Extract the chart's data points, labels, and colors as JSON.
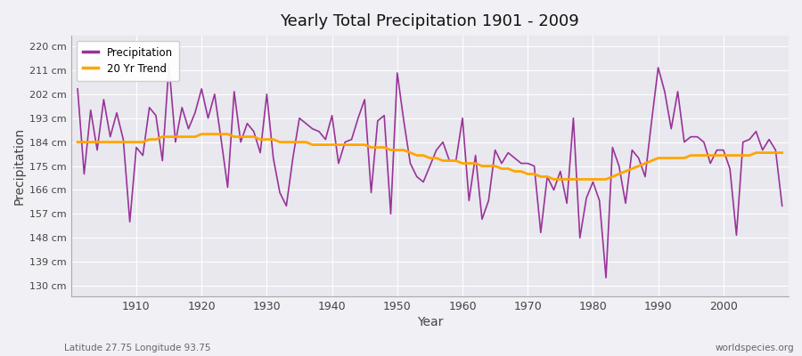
{
  "title": "Yearly Total Precipitation 1901 - 2009",
  "xlabel": "Year",
  "ylabel": "Precipitation",
  "x_label_bottom_left": "Latitude 27.75 Longitude 93.75",
  "x_label_bottom_right": "worldspecies.org",
  "legend_labels": [
    "Precipitation",
    "20 Yr Trend"
  ],
  "precip_color": "#993399",
  "trend_color": "#FFA500",
  "background_color": "#f0f0f5",
  "plot_bg_color": "#e8e8ee",
  "yticks": [
    130,
    139,
    148,
    157,
    166,
    175,
    184,
    193,
    202,
    211,
    220
  ],
  "ylim": [
    126,
    224
  ],
  "xlim": [
    1900,
    2010
  ],
  "years": [
    1901,
    1902,
    1903,
    1904,
    1905,
    1906,
    1907,
    1908,
    1909,
    1910,
    1911,
    1912,
    1913,
    1914,
    1915,
    1916,
    1917,
    1918,
    1919,
    1920,
    1921,
    1922,
    1923,
    1924,
    1925,
    1926,
    1927,
    1928,
    1929,
    1930,
    1931,
    1932,
    1933,
    1934,
    1935,
    1936,
    1937,
    1938,
    1939,
    1940,
    1941,
    1942,
    1943,
    1944,
    1945,
    1946,
    1947,
    1948,
    1949,
    1950,
    1951,
    1952,
    1953,
    1954,
    1955,
    1956,
    1957,
    1958,
    1959,
    1960,
    1961,
    1962,
    1963,
    1964,
    1965,
    1966,
    1967,
    1968,
    1969,
    1970,
    1971,
    1972,
    1973,
    1974,
    1975,
    1976,
    1977,
    1978,
    1979,
    1980,
    1981,
    1982,
    1983,
    1984,
    1985,
    1986,
    1987,
    1988,
    1989,
    1990,
    1991,
    1992,
    1993,
    1994,
    1995,
    1996,
    1997,
    1998,
    1999,
    2000,
    2001,
    2002,
    2003,
    2004,
    2005,
    2006,
    2007,
    2008,
    2009
  ],
  "precip": [
    204,
    172,
    196,
    181,
    200,
    186,
    195,
    185,
    154,
    182,
    179,
    197,
    194,
    177,
    213,
    184,
    197,
    189,
    195,
    204,
    193,
    202,
    185,
    167,
    203,
    184,
    191,
    188,
    180,
    202,
    178,
    165,
    160,
    178,
    193,
    191,
    189,
    188,
    185,
    194,
    176,
    184,
    185,
    193,
    200,
    165,
    192,
    194,
    157,
    210,
    192,
    176,
    171,
    169,
    175,
    181,
    184,
    177,
    177,
    193,
    162,
    179,
    155,
    162,
    181,
    176,
    180,
    178,
    176,
    176,
    175,
    150,
    171,
    166,
    173,
    161,
    193,
    148,
    163,
    169,
    162,
    133,
    182,
    175,
    161,
    181,
    178,
    171,
    192,
    212,
    203,
    189,
    203,
    184,
    186,
    186,
    184,
    176,
    181,
    181,
    174,
    149,
    184,
    185,
    188,
    181,
    185,
    181,
    160
  ],
  "trend": [
    184,
    184,
    184,
    184,
    184,
    184,
    184,
    184,
    184,
    184,
    184,
    185,
    185,
    186,
    186,
    186,
    186,
    186,
    186,
    187,
    187,
    187,
    187,
    187,
    186,
    186,
    186,
    186,
    185,
    185,
    185,
    184,
    184,
    184,
    184,
    184,
    183,
    183,
    183,
    183,
    183,
    183,
    183,
    183,
    183,
    182,
    182,
    182,
    181,
    181,
    181,
    180,
    179,
    179,
    178,
    178,
    177,
    177,
    177,
    176,
    176,
    176,
    175,
    175,
    175,
    174,
    174,
    173,
    173,
    172,
    172,
    171,
    171,
    170,
    170,
    170,
    170,
    170,
    170,
    170,
    170,
    170,
    171,
    172,
    173,
    174,
    175,
    176,
    177,
    178,
    178,
    178,
    178,
    178,
    179,
    179,
    179,
    179,
    179,
    179,
    179,
    179,
    179,
    179,
    180,
    180,
    180,
    180,
    180
  ]
}
